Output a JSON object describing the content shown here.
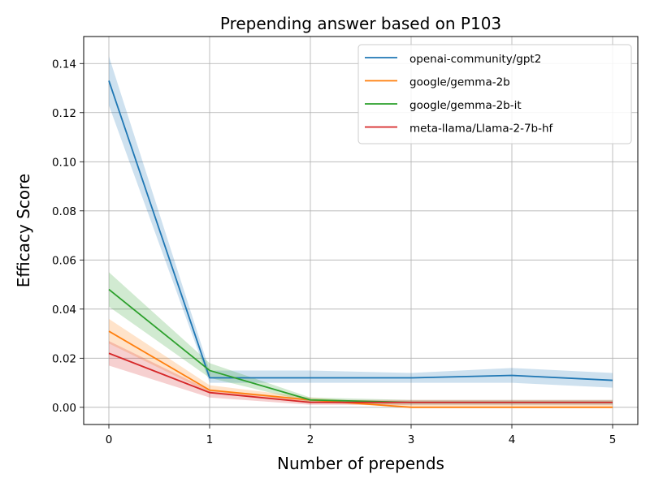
{
  "chart_data": {
    "type": "line",
    "title": "Prepending answer based on P103",
    "xlabel": "Number of prepends",
    "ylabel": "Efficacy Score",
    "x": [
      0,
      1,
      2,
      3,
      4,
      5
    ],
    "xlim": [
      -0.25,
      5.25
    ],
    "ylim": [
      -0.007,
      0.151
    ],
    "xticks": [
      0,
      1,
      2,
      3,
      4,
      5
    ],
    "xtick_labels": [
      "0",
      "1",
      "2",
      "3",
      "4",
      "5"
    ],
    "yticks": [
      0.0,
      0.02,
      0.04,
      0.06,
      0.08,
      0.1,
      0.12,
      0.14
    ],
    "ytick_labels": [
      "0.00",
      "0.02",
      "0.04",
      "0.06",
      "0.08",
      "0.10",
      "0.12",
      "0.14"
    ],
    "grid": true,
    "legend_position": "top-right",
    "series": [
      {
        "name": "openai-community/gpt2",
        "color": "#1f77b4",
        "values": [
          0.133,
          0.012,
          0.012,
          0.012,
          0.013,
          0.011
        ],
        "lower": [
          0.123,
          0.01,
          0.01,
          0.01,
          0.01,
          0.008
        ],
        "upper": [
          0.143,
          0.015,
          0.015,
          0.014,
          0.016,
          0.014
        ]
      },
      {
        "name": "google/gemma-2b",
        "color": "#ff7f0e",
        "values": [
          0.031,
          0.007,
          0.003,
          0.0,
          0.0,
          0.0
        ],
        "lower": [
          0.026,
          0.006,
          0.002,
          0.0,
          0.0,
          0.0
        ],
        "upper": [
          0.036,
          0.009,
          0.004,
          0.001,
          0.001,
          0.001
        ]
      },
      {
        "name": "google/gemma-2b-it",
        "color": "#2ca02c",
        "values": [
          0.048,
          0.015,
          0.003,
          0.002,
          0.002,
          0.002
        ],
        "lower": [
          0.041,
          0.012,
          0.002,
          0.001,
          0.001,
          0.001
        ],
        "upper": [
          0.055,
          0.018,
          0.004,
          0.003,
          0.003,
          0.003
        ]
      },
      {
        "name": "meta-llama/Llama-2-7b-hf",
        "color": "#d62728",
        "values": [
          0.022,
          0.006,
          0.002,
          0.002,
          0.002,
          0.002
        ],
        "lower": [
          0.017,
          0.004,
          0.001,
          0.001,
          0.001,
          0.001
        ],
        "upper": [
          0.027,
          0.007,
          0.003,
          0.003,
          0.003,
          0.003
        ]
      }
    ]
  }
}
